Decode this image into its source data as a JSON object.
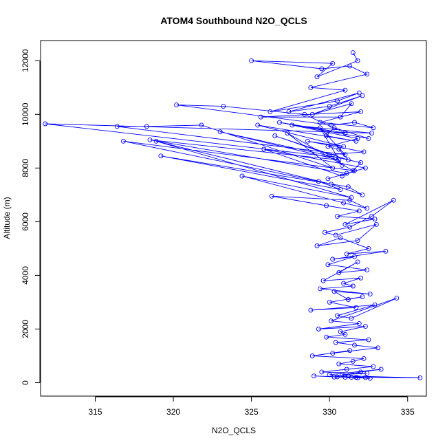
{
  "chart_data": {
    "type": "line",
    "title": "ATOM4 Southbound N2O_QCLS",
    "xlabel": "N2O_QCLS",
    "ylabel": "Altitude (m)",
    "xlim": [
      311.5,
      336.2
    ],
    "ylim": [
      -500,
      12750
    ],
    "xticks": [
      315,
      320,
      325,
      330,
      335
    ],
    "yticks": [
      0,
      2000,
      4000,
      6000,
      8000,
      10000,
      12000
    ],
    "grid": false,
    "legend": "none",
    "color": "#0000ff",
    "markers": "open-circle",
    "series": [
      {
        "x": [
          331.5,
          331.8,
          329.2,
          330.2,
          325.0,
          329.5,
          331.3,
          332.4,
          328.8,
          331.0,
          326.2,
          330.5,
          331.9,
          327.4,
          330.0,
          332.1,
          328.9,
          331.4,
          330.7,
          325.6,
          332.0,
          329.4,
          332.8,
          331.6,
          330.1,
          320.2,
          323.2,
          328.4,
          331.0,
          326.8,
          332.5,
          330.3,
          329.8,
          331.7,
          325.4,
          330.9,
          328.6,
          332.2,
          330.0,
          326.5,
          331.2,
          330.6,
          329.9,
          331.8,
          327.6,
          332.7,
          311.8,
          330.4,
          330.8,
          329.4,
          331.0,
          316.4,
          318.3,
          321.8,
          330.2,
          327.3,
          331.5,
          332.0,
          323.0,
          330.6,
          318.5,
          331.1,
          329.9,
          332.3,
          325.8,
          330.8,
          331.6,
          316.8,
          329.3,
          330.7,
          319.2,
          331.2,
          332.1,
          330.1,
          318.9,
          331.4,
          324.4,
          330.9,
          332.4,
          331.3,
          326.3,
          329.8,
          331.9,
          330.5,
          332.9,
          331.0,
          334.1,
          332.7,
          331.3,
          329.7,
          330.4,
          333.0,
          331.8,
          329.2,
          330.7,
          332.5,
          331.1,
          333.6,
          330.2,
          331.6,
          329.9,
          332.4,
          330.6,
          331.8,
          329.6,
          332.0,
          330.9,
          331.5,
          329.4,
          332.6,
          330.3,
          331.2,
          332.1,
          330.0,
          331.7,
          328.8,
          332.9,
          330.5,
          331.4,
          334.3,
          330.1,
          331.9,
          329.3,
          332.3,
          330.7,
          331.0,
          329.8,
          332.5,
          330.4,
          331.6,
          333.1,
          330.2,
          331.3,
          328.9,
          332.2,
          331.5,
          330.6,
          332.8,
          331.1,
          329.5,
          332.4,
          330.8,
          331.2,
          335.8,
          331.7,
          330.3,
          332.0,
          333.3,
          330.0,
          331.4,
          329.0,
          332.6,
          331.0,
          331.8,
          330.5,
          332.3,
          331.2
        ],
        "y": [
          12300,
          12000,
          11400,
          11900,
          12000,
          11700,
          11800,
          11500,
          11000,
          10900,
          10100,
          10500,
          10800,
          10100,
          10300,
          10700,
          10000,
          10400,
          9900,
          9900,
          10100,
          9700,
          9500,
          9700,
          9600,
          10350,
          10300,
          10000,
          9300,
          9700,
          9100,
          9500,
          9200,
          9000,
          9600,
          8800,
          9000,
          8600,
          8500,
          9200,
          8300,
          8700,
          8800,
          9100,
          9600,
          9300,
          9650,
          8400,
          8100,
          9500,
          8500,
          9550,
          9550,
          9600,
          8000,
          9300,
          7900,
          8200,
          9350,
          8300,
          9050,
          7800,
          7600,
          8000,
          8700,
          7700,
          7900,
          9000,
          7500,
          7200,
          8450,
          7300,
          7000,
          7400,
          9000,
          6900,
          7700,
          6700,
          6500,
          6800,
          6950,
          6600,
          6400,
          6200,
          6100,
          5900,
          6800,
          6200,
          5800,
          5600,
          5500,
          5900,
          5300,
          5100,
          5400,
          5000,
          4800,
          4900,
          4600,
          4700,
          4400,
          4200,
          4100,
          4500,
          3800,
          3900,
          3700,
          3600,
          3500,
          3300,
          3400,
          3100,
          3200,
          3000,
          2800,
          2700,
          2900,
          2500,
          2400,
          3150,
          2300,
          2200,
          2000,
          2100,
          1900,
          1800,
          1700,
          1600,
          1500,
          1400,
          1300,
          1100,
          1200,
          1000,
          900,
          800,
          700,
          600,
          500,
          400,
          350,
          300,
          250,
          180,
          200,
          210,
          400,
          500,
          300,
          200,
          250,
          160,
          200,
          180,
          220,
          190,
          250
        ]
      }
    ]
  }
}
